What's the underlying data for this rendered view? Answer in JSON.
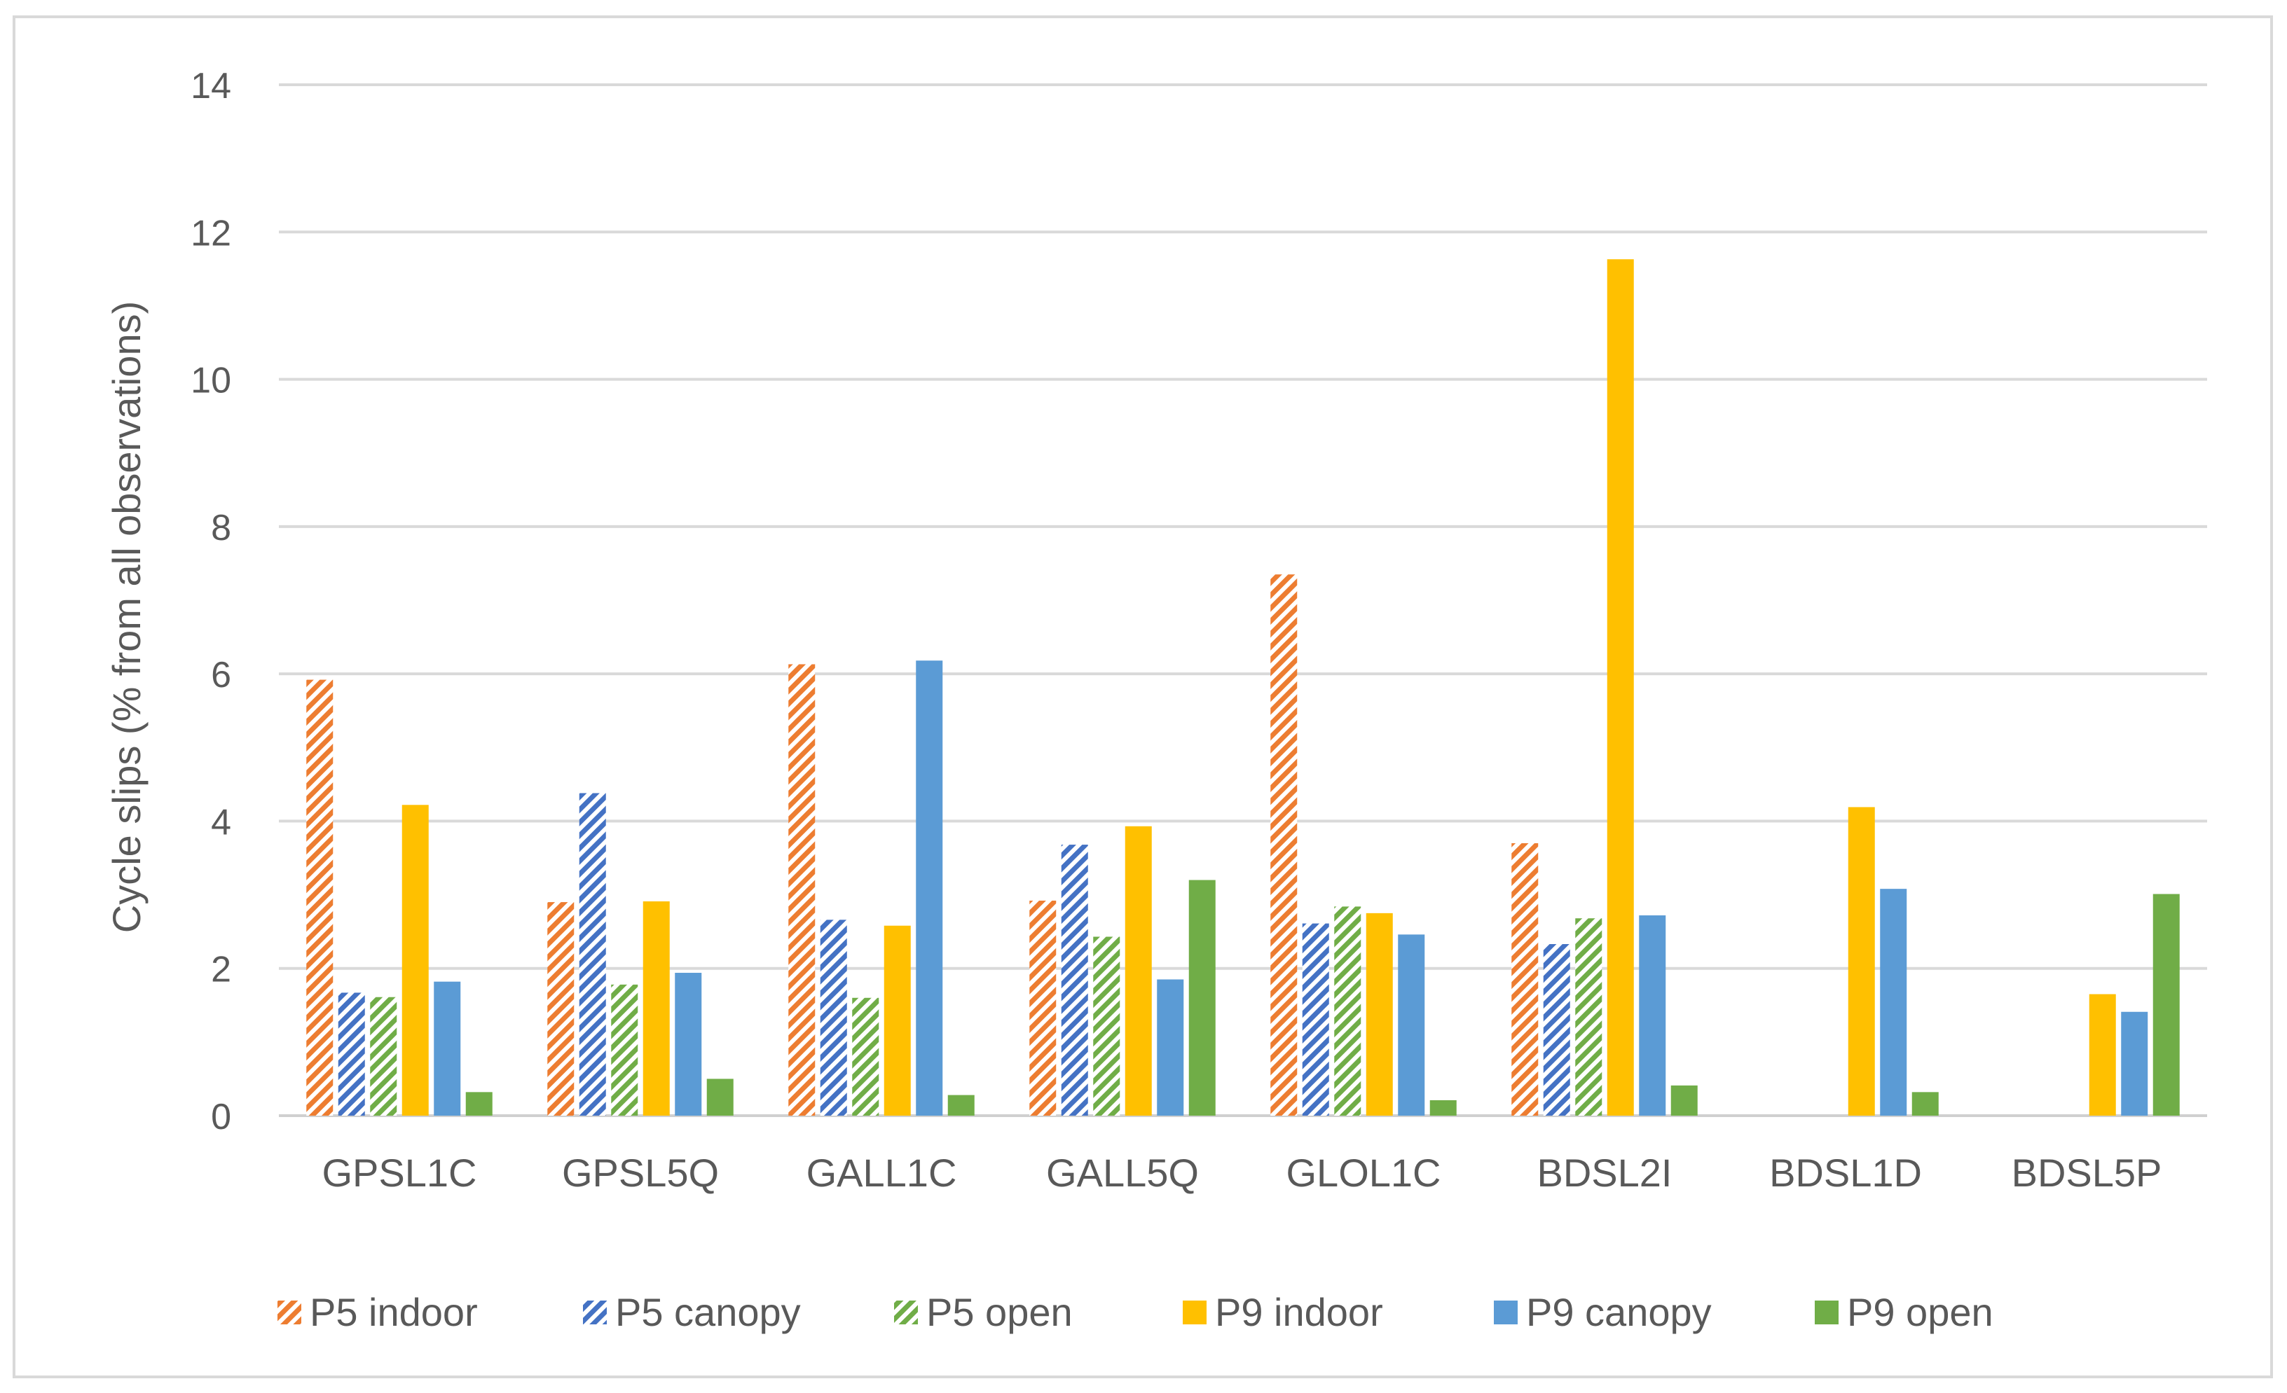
{
  "chart_data": {
    "type": "bar",
    "title": "",
    "xlabel": "",
    "ylabel": "Cycle slips (% from all observations)",
    "ylim": [
      0,
      14
    ],
    "ytick_step": 2,
    "yticks": [
      "0",
      "2",
      "4",
      "6",
      "8",
      "10",
      "12",
      "14"
    ],
    "grid": true,
    "legend_position": "bottom",
    "categories": [
      "GPSL1C",
      "GPSL5Q",
      "GALL1C",
      "GALL5Q",
      "GLOL1C",
      "BDSL2I",
      "BDSL1D",
      "BDSL5P"
    ],
    "series": [
      {
        "name": "P5 indoor",
        "color": "#ED7D31",
        "pattern": "hatched",
        "values": [
          5.92,
          2.9,
          6.13,
          2.92,
          7.35,
          3.7,
          null,
          null
        ]
      },
      {
        "name": "P5 canopy",
        "color": "#4472C4",
        "pattern": "hatched",
        "values": [
          1.67,
          4.38,
          2.66,
          3.68,
          2.61,
          2.33,
          null,
          null
        ]
      },
      {
        "name": "P5 open",
        "color": "#70AD47",
        "pattern": "hatched",
        "values": [
          1.61,
          1.78,
          1.6,
          2.43,
          2.84,
          2.68,
          null,
          null
        ]
      },
      {
        "name": "P9 indoor",
        "color": "#FFC000",
        "pattern": "solid",
        "values": [
          4.22,
          2.91,
          2.58,
          3.93,
          2.75,
          11.63,
          4.19,
          1.65
        ]
      },
      {
        "name": "P9 canopy",
        "color": "#5B9BD5",
        "pattern": "solid",
        "values": [
          1.82,
          1.94,
          6.18,
          1.85,
          2.46,
          2.72,
          3.08,
          1.41
        ]
      },
      {
        "name": "P9 open",
        "color": "#70AD47",
        "pattern": "solid",
        "values": [
          0.32,
          0.5,
          0.28,
          3.2,
          0.21,
          0.41,
          0.32,
          3.01
        ]
      }
    ]
  }
}
